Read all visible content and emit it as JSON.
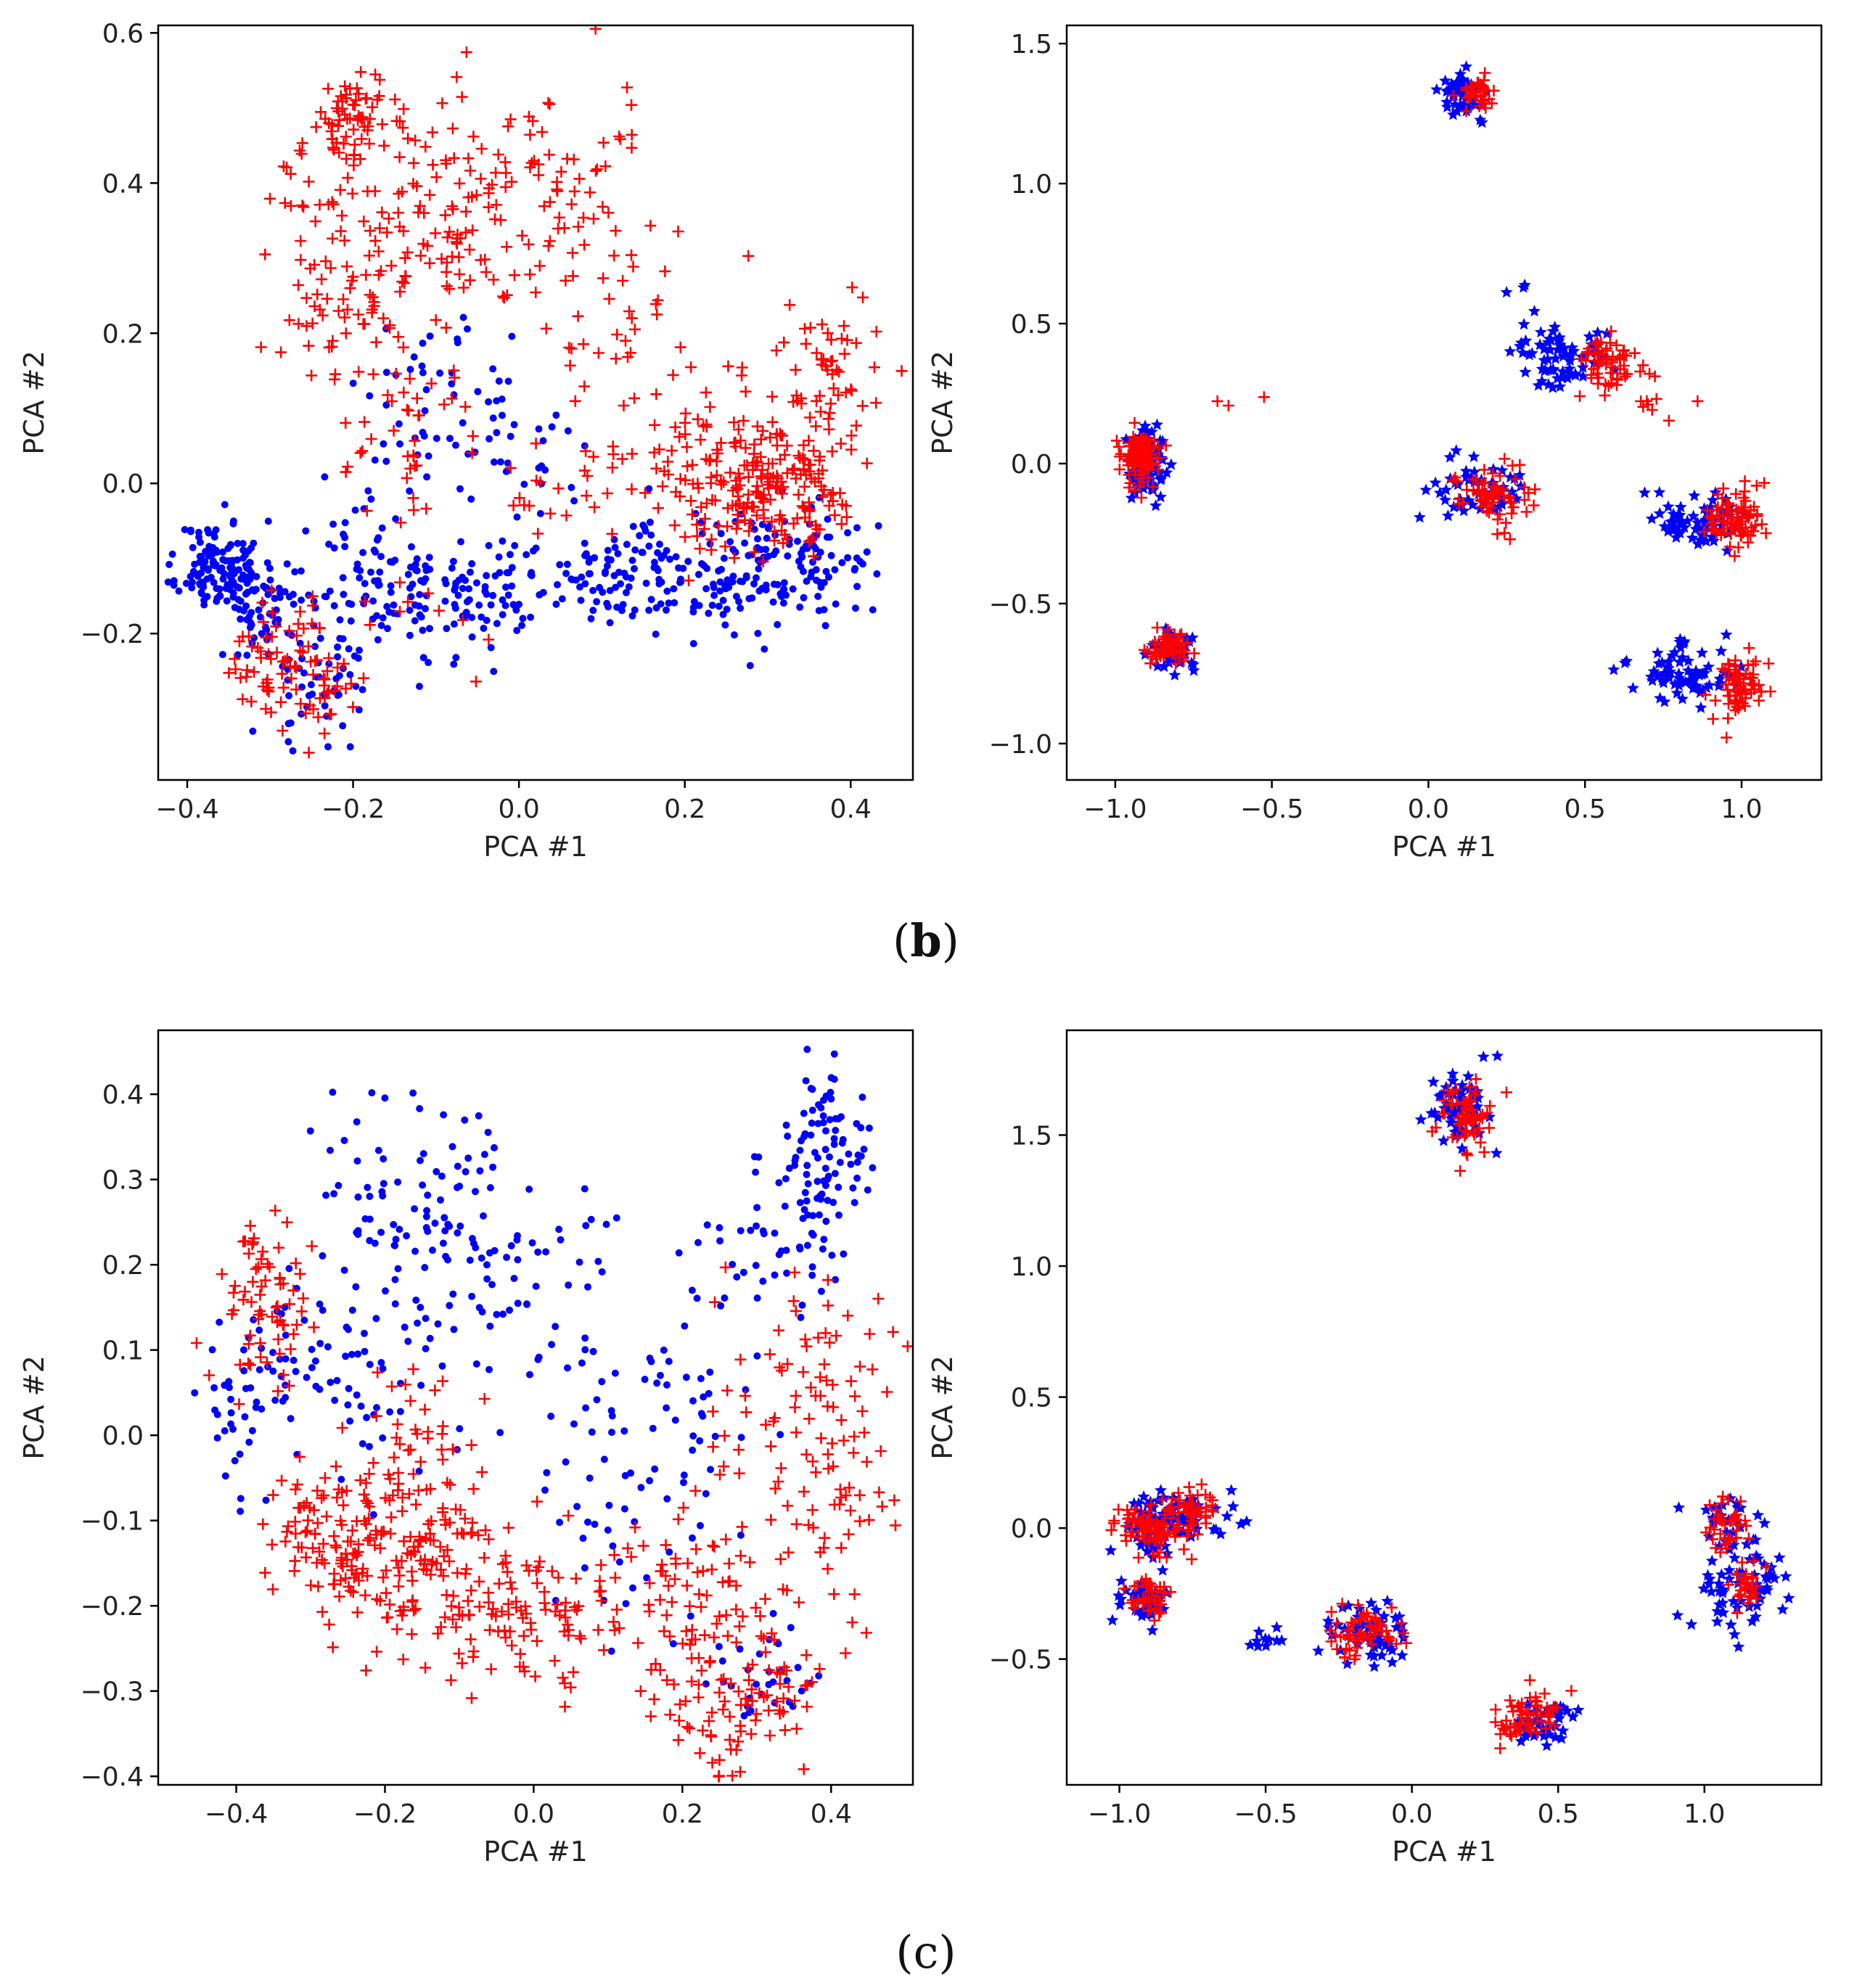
{
  "colors": {
    "blue": "#0000ff",
    "red": "#ff0000"
  },
  "captions": [
    {
      "prefix": "(",
      "letter": "b",
      "suffix": ")"
    },
    {
      "prefix": "(",
      "letter": "c",
      "suffix": ")"
    }
  ],
  "chart_data": [
    {
      "type": "scatter",
      "panel": "b-left",
      "xlabel": "PCA #1",
      "ylabel": "PCA #2",
      "xlim": [
        -0.435,
        0.475
      ],
      "ylim": [
        -0.395,
        0.61
      ],
      "xticks": [
        -0.4,
        -0.2,
        0.0,
        0.2,
        0.4
      ],
      "xtick_labels": [
        "−0.4",
        "−0.2",
        "0.0",
        "0.2",
        "0.4"
      ],
      "yticks": [
        -0.2,
        0.0,
        0.2,
        0.4,
        0.6
      ],
      "ytick_labels": [
        "−0.2",
        "0.0",
        "0.2",
        "0.4",
        "0.6"
      ],
      "grid": false,
      "series": [
        {
          "color": "blue",
          "marker": "dot",
          "seed": 11,
          "clusters": [
            [
              -0.36,
              -0.11,
              0.025,
              0.03,
              130
            ],
            [
              -0.31,
              -0.17,
              0.03,
              0.035,
              60
            ],
            [
              -0.24,
              -0.27,
              0.03,
              0.035,
              45
            ],
            [
              -0.2,
              -0.12,
              0.04,
              0.05,
              60
            ],
            [
              -0.08,
              -0.15,
              0.06,
              0.04,
              110
            ],
            [
              0.08,
              -0.12,
              0.06,
              0.03,
              70
            ],
            [
              0.15,
              -0.1,
              0.03,
              0.03,
              35
            ],
            [
              0.25,
              -0.13,
              0.04,
              0.04,
              80
            ],
            [
              0.34,
              -0.1,
              0.04,
              0.04,
              90
            ],
            [
              -0.12,
              0.1,
              0.04,
              0.06,
              35
            ],
            [
              -0.05,
              0.15,
              0.03,
              0.04,
              15
            ],
            [
              0.0,
              0.05,
              0.04,
              0.05,
              25
            ]
          ]
        },
        {
          "color": "red",
          "marker": "plus",
          "seed": 29,
          "clusters": [
            [
              -0.2,
              0.48,
              0.025,
              0.035,
              70
            ],
            [
              -0.16,
              0.3,
              0.05,
              0.06,
              70
            ],
            [
              -0.07,
              0.4,
              0.05,
              0.07,
              60
            ],
            [
              0.05,
              0.38,
              0.05,
              0.07,
              60
            ],
            [
              0.11,
              0.22,
              0.04,
              0.07,
              30
            ],
            [
              -0.23,
              0.22,
              0.03,
              0.05,
              35
            ],
            [
              -0.27,
              0.38,
              0.03,
              0.05,
              20
            ],
            [
              -0.12,
              0.05,
              0.05,
              0.07,
              40
            ],
            [
              0.06,
              0.0,
              0.05,
              0.03,
              25
            ],
            [
              0.2,
              0.12,
              0.04,
              0.05,
              20
            ],
            [
              0.31,
              0.0,
              0.05,
              0.05,
              180
            ],
            [
              0.36,
              0.15,
              0.04,
              0.06,
              60
            ],
            [
              0.22,
              -0.02,
              0.03,
              0.04,
              35
            ],
            [
              -0.29,
              -0.24,
              0.03,
              0.035,
              60
            ],
            [
              -0.24,
              -0.28,
              0.02,
              0.03,
              25
            ],
            [
              -0.15,
              -0.18,
              0.05,
              0.03,
              15
            ]
          ]
        }
      ]
    },
    {
      "type": "scatter",
      "panel": "b-right",
      "xlabel": "PCA #1",
      "ylabel": "PCA #2",
      "xlim": [
        -1.155,
        1.255
      ],
      "ylim": [
        -1.13,
        1.565
      ],
      "xticks": [
        -1.0,
        -0.5,
        0.0,
        0.5,
        1.0
      ],
      "xtick_labels": [
        "−1.0",
        "−0.5",
        "0.0",
        "0.5",
        "1.0"
      ],
      "yticks": [
        -1.0,
        -0.5,
        0.0,
        0.5,
        1.0,
        1.5
      ],
      "ytick_labels": [
        "−1.0",
        "−0.5",
        "0.0",
        "0.5",
        "1.0",
        "1.5"
      ],
      "grid": false,
      "series": [
        {
          "color": "blue",
          "marker": "star",
          "seed": 41,
          "clusters": [
            [
              0.12,
              1.32,
              0.04,
              0.04,
              50
            ],
            [
              -0.9,
              0.0,
              0.03,
              0.06,
              90
            ],
            [
              -0.82,
              -0.67,
              0.035,
              0.03,
              60
            ],
            [
              0.42,
              0.38,
              0.07,
              0.06,
              70
            ],
            [
              0.15,
              -0.1,
              0.1,
              0.06,
              50
            ],
            [
              0.85,
              -0.2,
              0.07,
              0.06,
              60
            ],
            [
              0.8,
              -0.75,
              0.08,
              0.06,
              70
            ],
            [
              0.33,
              0.6,
              0.03,
              0.06,
              5
            ]
          ]
        },
        {
          "color": "red",
          "marker": "plus",
          "seed": 53,
          "clusters": [
            [
              0.16,
              1.33,
              0.03,
              0.03,
              40
            ],
            [
              -0.92,
              0.02,
              0.03,
              0.05,
              110
            ],
            [
              -0.83,
              -0.66,
              0.04,
              0.03,
              60
            ],
            [
              0.58,
              0.35,
              0.05,
              0.05,
              60
            ],
            [
              0.22,
              -0.12,
              0.07,
              0.05,
              70
            ],
            [
              0.98,
              -0.2,
              0.05,
              0.05,
              80
            ],
            [
              1.0,
              -0.8,
              0.05,
              0.07,
              70
            ],
            [
              -0.6,
              0.2,
              0.05,
              0.03,
              3
            ],
            [
              0.72,
              0.22,
              0.05,
              0.05,
              10
            ]
          ]
        }
      ]
    },
    {
      "type": "scatter",
      "panel": "c-left",
      "xlabel": "PCA #1",
      "ylabel": "PCA #2",
      "xlim": [
        -0.505,
        0.51
      ],
      "ylim": [
        -0.41,
        0.475
      ],
      "xticks": [
        -0.4,
        -0.2,
        0.0,
        0.2,
        0.4
      ],
      "xtick_labels": [
        "−0.4",
        "−0.2",
        "0.0",
        "0.2",
        "0.4"
      ],
      "yticks": [
        -0.4,
        -0.3,
        -0.2,
        -0.1,
        0.0,
        0.1,
        0.2,
        0.3,
        0.4
      ],
      "ytick_labels": [
        "−0.4",
        "−0.3",
        "−0.2",
        "−0.1",
        "0.0",
        "0.1",
        "0.2",
        "0.3",
        "0.4"
      ],
      "grid": false,
      "series": [
        {
          "color": "blue",
          "marker": "dot",
          "seed": 67,
          "clusters": [
            [
              0.39,
              0.32,
              0.03,
              0.05,
              90
            ],
            [
              0.32,
              0.22,
              0.04,
              0.04,
              40
            ],
            [
              -0.2,
              0.28,
              0.05,
              0.06,
              50
            ],
            [
              -0.1,
              0.2,
              0.06,
              0.08,
              70
            ],
            [
              -0.32,
              0.08,
              0.05,
              0.05,
              60
            ],
            [
              -0.4,
              0.0,
              0.02,
              0.05,
              20
            ],
            [
              0.05,
              0.15,
              0.05,
              0.08,
              30
            ],
            [
              0.2,
              0.05,
              0.06,
              0.1,
              50
            ],
            [
              -0.2,
              0.05,
              0.05,
              0.05,
              30
            ],
            [
              0.3,
              -0.28,
              0.04,
              0.03,
              30
            ],
            [
              0.1,
              -0.1,
              0.06,
              0.06,
              30
            ]
          ]
        },
        {
          "color": "red",
          "marker": "plus",
          "seed": 79,
          "clusters": [
            [
              -0.36,
              0.16,
              0.03,
              0.05,
              70
            ],
            [
              -0.28,
              -0.11,
              0.04,
              0.04,
              90
            ],
            [
              -0.15,
              -0.15,
              0.06,
              0.06,
              150
            ],
            [
              0.0,
              -0.2,
              0.06,
              0.05,
              80
            ],
            [
              0.2,
              -0.2,
              0.06,
              0.05,
              80
            ],
            [
              0.3,
              -0.3,
              0.04,
              0.04,
              50
            ],
            [
              0.4,
              -0.05,
              0.04,
              0.12,
              90
            ],
            [
              0.3,
              0.02,
              0.04,
              0.08,
              30
            ],
            [
              -0.15,
              0.0,
              0.04,
              0.05,
              30
            ],
            [
              0.25,
              -0.34,
              0.03,
              0.03,
              25
            ]
          ]
        }
      ]
    },
    {
      "type": "scatter",
      "panel": "c-right",
      "xlabel": "PCA #1",
      "ylabel": "PCA #2",
      "xlim": [
        -1.18,
        1.4
      ],
      "ylim": [
        -0.98,
        1.9
      ],
      "xticks": [
        -1.0,
        -0.5,
        0.0,
        0.5,
        1.0
      ],
      "xtick_labels": [
        "−1.0",
        "−0.5",
        "0.0",
        "0.5",
        "1.0"
      ],
      "yticks": [
        -0.5,
        0.0,
        0.5,
        1.0,
        1.5
      ],
      "ytick_labels": [
        "−0.5",
        "0.0",
        "0.5",
        "1.0",
        "1.5"
      ],
      "grid": false,
      "series": [
        {
          "color": "blue",
          "marker": "star",
          "seed": 83,
          "clusters": [
            [
              0.17,
              1.6,
              0.05,
              0.08,
              60
            ],
            [
              -0.9,
              0.0,
              0.05,
              0.06,
              50
            ],
            [
              -0.75,
              0.05,
              0.08,
              0.05,
              40
            ],
            [
              -0.92,
              -0.28,
              0.04,
              0.04,
              40
            ],
            [
              -0.15,
              -0.4,
              0.08,
              0.06,
              60
            ],
            [
              0.45,
              -0.75,
              0.06,
              0.05,
              40
            ],
            [
              1.12,
              -0.2,
              0.08,
              0.08,
              60
            ],
            [
              1.08,
              0.0,
              0.05,
              0.06,
              30
            ],
            [
              -0.5,
              -0.42,
              0.05,
              0.03,
              10
            ]
          ]
        },
        {
          "color": "red",
          "marker": "plus",
          "seed": 97,
          "clusters": [
            [
              0.17,
              1.57,
              0.05,
              0.07,
              70
            ],
            [
              -0.9,
              0.0,
              0.06,
              0.05,
              90
            ],
            [
              -0.75,
              0.08,
              0.05,
              0.05,
              40
            ],
            [
              -0.9,
              -0.26,
              0.04,
              0.04,
              40
            ],
            [
              -0.15,
              -0.4,
              0.07,
              0.05,
              60
            ],
            [
              0.4,
              -0.72,
              0.06,
              0.05,
              60
            ],
            [
              1.08,
              0.0,
              0.04,
              0.06,
              40
            ],
            [
              1.14,
              -0.22,
              0.03,
              0.04,
              30
            ]
          ]
        }
      ]
    }
  ]
}
